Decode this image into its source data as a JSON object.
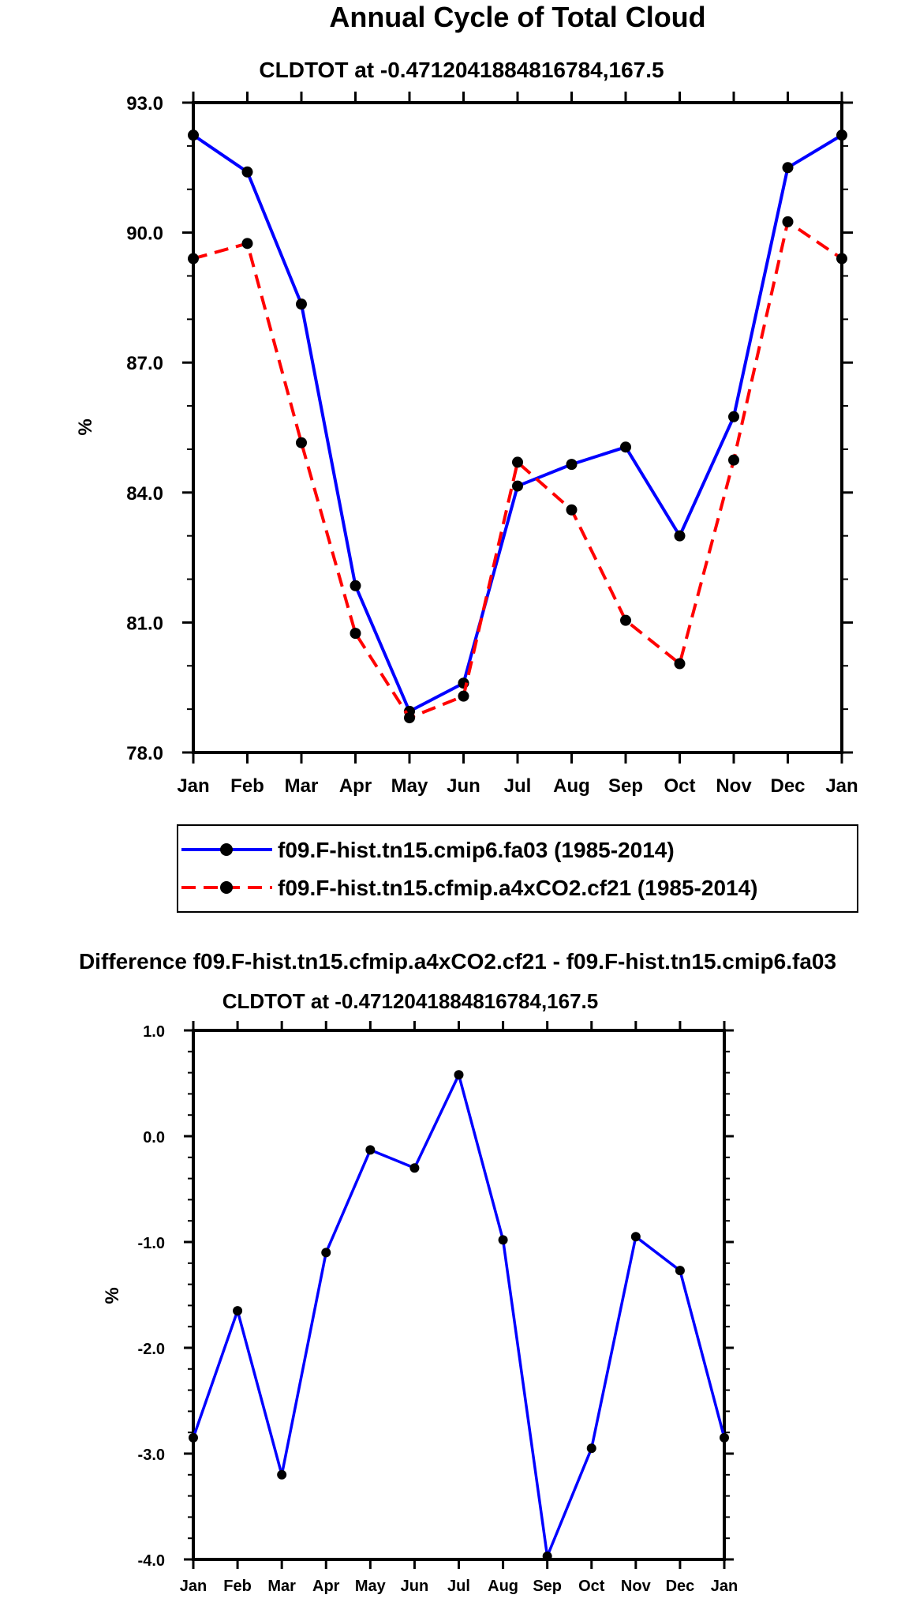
{
  "chart_data": [
    {
      "type": "line",
      "title": "Annual Cycle of Total Cloud",
      "subtitle": "CLDTOT at -0.4712041884816784,167.5",
      "xlabel": "",
      "ylabel": "%",
      "categories": [
        "Jan",
        "Feb",
        "Mar",
        "Apr",
        "May",
        "Jun",
        "Jul",
        "Aug",
        "Sep",
        "Oct",
        "Nov",
        "Dec",
        "Jan"
      ],
      "ylim": [
        78.0,
        93.0
      ],
      "yticks": [
        "78.0",
        "81.0",
        "84.0",
        "87.0",
        "90.0",
        "93.0"
      ],
      "series": [
        {
          "name": "f09.F-hist.tn15.cmip6.fa03 (1985-2014)",
          "color": "#0000ff",
          "dash": "solid",
          "values": [
            92.25,
            91.4,
            88.35,
            81.85,
            78.95,
            79.6,
            84.15,
            84.65,
            85.05,
            83.0,
            85.75,
            91.5,
            92.25
          ]
        },
        {
          "name": "f09.F-hist.tn15.cfmip.a4xCO2.cf21 (1985-2014)",
          "color": "#ff0000",
          "dash": "dashed",
          "values": [
            89.4,
            89.75,
            85.15,
            80.75,
            78.8,
            79.3,
            84.7,
            83.6,
            81.05,
            80.05,
            84.75,
            90.25,
            89.4
          ]
        }
      ],
      "legend_position": "below"
    },
    {
      "type": "line",
      "title": "Difference f09.F-hist.tn15.cfmip.a4xCO2.cf21 - f09.F-hist.tn15.cmip6.fa03",
      "subtitle": "CLDTOT at -0.4712041884816784,167.5",
      "xlabel": "",
      "ylabel": "%",
      "categories": [
        "Jan",
        "Feb",
        "Mar",
        "Apr",
        "May",
        "Jun",
        "Jul",
        "Aug",
        "Sep",
        "Oct",
        "Nov",
        "Dec",
        "Jan"
      ],
      "ylim": [
        -4.0,
        1.0
      ],
      "yticks": [
        "-4.0",
        "-3.0",
        "-2.0",
        "-1.0",
        "0.0",
        "1.0"
      ],
      "series": [
        {
          "name": "difference",
          "color": "#0000ff",
          "dash": "solid",
          "values": [
            -2.85,
            -1.65,
            -3.2,
            -1.1,
            -0.13,
            -0.3,
            0.58,
            -0.98,
            -3.97,
            -2.95,
            -0.95,
            -1.27,
            -2.85
          ]
        }
      ]
    }
  ]
}
